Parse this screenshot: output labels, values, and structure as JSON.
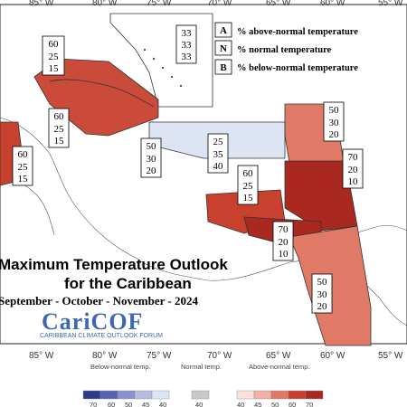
{
  "map": {
    "title_line1": "Maximum Temperature Outlook",
    "title_line2": "for the Caribbean",
    "season": "September - October - November - 2024",
    "longitudes_top": [
      "85° W",
      "80° W",
      "75° W",
      "70° W",
      "65° W",
      "60° W",
      "55° W"
    ],
    "longitudes_bottom": [
      "85° W",
      "80° W",
      "75° W",
      "70° W",
      "65° W",
      "60° W",
      "55° W"
    ]
  },
  "legend": {
    "items": [
      {
        "abbr": "A",
        "text": "% above-normal temperature"
      },
      {
        "abbr": "N",
        "text": "% normal temperature"
      },
      {
        "abbr": "B",
        "text": "% below-normal temperature"
      }
    ]
  },
  "logo": {
    "name": "CariCOF",
    "subtitle": "CARIBBEAN CLIMATE OUTLOOK FORUM",
    "color": "#3e69b0"
  },
  "regions": [
    {
      "id": "bahamas",
      "probs": [
        "33",
        "33",
        "33"
      ],
      "color": "#ffffff"
    },
    {
      "id": "cuba-north",
      "probs": [
        "60",
        "25",
        "15"
      ],
      "color": "#c8412f"
    },
    {
      "id": "cuba-south",
      "probs": [
        "60",
        "25",
        "15"
      ],
      "color": "#c8412f"
    },
    {
      "id": "belize",
      "probs": [
        "60",
        "25",
        "15"
      ],
      "color": "#c8412f"
    },
    {
      "id": "cayman",
      "probs": [
        "50",
        "30",
        "20"
      ],
      "color": "#e07a66"
    },
    {
      "id": "hispaniola-pr",
      "probs": [
        "25",
        "35",
        "40"
      ],
      "color": "#dde4f4"
    },
    {
      "id": "leeward",
      "probs": [
        "50",
        "30",
        "20"
      ],
      "color": "#e07a66"
    },
    {
      "id": "windward",
      "probs": [
        "70",
        "20",
        "10"
      ],
      "color": "#a9281f"
    },
    {
      "id": "abc-islands",
      "probs": [
        "60",
        "25",
        "15"
      ],
      "color": "#c8412f"
    },
    {
      "id": "trinidad",
      "probs": [
        "70",
        "20",
        "10"
      ],
      "color": "#a9281f"
    },
    {
      "id": "guianas",
      "probs": [
        "50",
        "30",
        "20"
      ],
      "color": "#e07a66"
    }
  ],
  "colorbar": {
    "below_label": "Below-normal temp.",
    "normal_label": "Normal temp.",
    "above_label": "Above-normal temp.",
    "below_ticks": [
      "70",
      "60",
      "50",
      "45",
      "40"
    ],
    "normal_ticks": [
      "40"
    ],
    "above_ticks": [
      "40",
      "45",
      "50",
      "60",
      "70"
    ],
    "below_colors": [
      "#2b3a8a",
      "#5663b0",
      "#8a92cc",
      "#b7bde2",
      "#dde4f4"
    ],
    "normal_color": "#c8c8c8",
    "above_colors": [
      "#fbe1db",
      "#f1b1a4",
      "#e07a66",
      "#c8412f",
      "#a9281f"
    ]
  }
}
